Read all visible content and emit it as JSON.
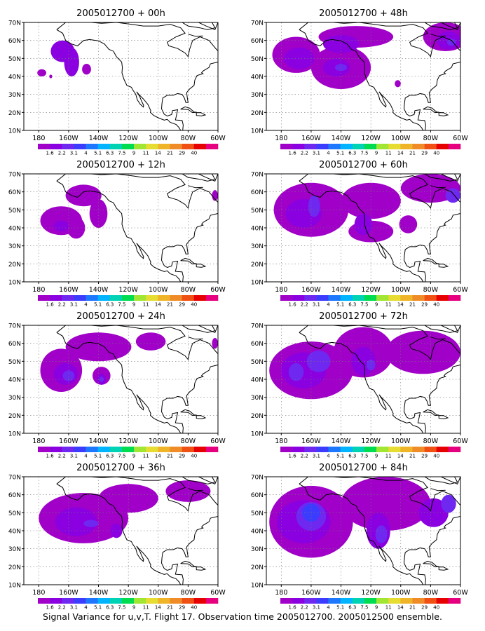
{
  "caption": "Signal Variance for u,v,T. Flight 17. Observation time 2005012700. 2005012500 ensemble.",
  "y_ticks": [
    "70N",
    "60N",
    "50N",
    "40N",
    "30N",
    "20N",
    "10N"
  ],
  "x_ticks": [
    "180",
    "160W",
    "140W",
    "120W",
    "100W",
    "80W",
    "60W"
  ],
  "colorbar": {
    "colors": [
      "#a000c8",
      "#8a00e0",
      "#6e28f0",
      "#3c3cff",
      "#1e78ff",
      "#00b4ff",
      "#00d2b4",
      "#00dc50",
      "#a0e632",
      "#e6dc32",
      "#f0b428",
      "#f08c28",
      "#f05014",
      "#e60000",
      "#e60080"
    ],
    "labels": [
      "1.6",
      "2.2",
      "3.1",
      "4",
      "5.1",
      "6.3",
      "7.5",
      "9",
      "11",
      "14",
      "21",
      "29",
      "40"
    ]
  },
  "panels": [
    {
      "title": "2005012700 + 00h",
      "blobs": [
        {
          "lon": -164,
          "lat": 54,
          "r": 8,
          "rl": 6,
          "level": 1
        },
        {
          "lon": -158,
          "lat": 48,
          "r": 5,
          "rl": 8,
          "level": 1
        },
        {
          "lon": -178,
          "lat": 42,
          "r": 3,
          "rl": 2,
          "level": 0
        },
        {
          "lon": -148,
          "lat": 44,
          "r": 3,
          "rl": 3,
          "level": 0
        },
        {
          "lon": -172,
          "lat": 40,
          "r": 1,
          "rl": 1,
          "level": 0
        }
      ]
    },
    {
      "title": "2005012700 + 48h",
      "blobs": [
        {
          "lon": -170,
          "lat": 52,
          "r": 16,
          "rl": 10,
          "level": 0
        },
        {
          "lon": -140,
          "lat": 45,
          "r": 20,
          "rl": 12,
          "level": 0
        },
        {
          "lon": -130,
          "lat": 62,
          "r": 25,
          "rl": 6,
          "level": 0
        },
        {
          "lon": -70,
          "lat": 62,
          "r": 15,
          "rl": 8,
          "level": 0
        },
        {
          "lon": -168,
          "lat": 50,
          "r": 10,
          "rl": 6,
          "level": 1
        },
        {
          "lon": -143,
          "lat": 45,
          "r": 9,
          "rl": 5,
          "level": 1
        },
        {
          "lon": -140,
          "lat": 45,
          "r": 4,
          "rl": 2,
          "level": 2
        },
        {
          "lon": -140,
          "lat": 58,
          "r": 12,
          "rl": 5,
          "level": 1
        },
        {
          "lon": -68,
          "lat": 60,
          "r": 8,
          "rl": 5,
          "level": 1
        },
        {
          "lon": -66,
          "lat": 59,
          "r": 3,
          "rl": 2,
          "level": 2
        },
        {
          "lon": -102,
          "lat": 36,
          "r": 2,
          "rl": 2,
          "level": 0
        }
      ]
    },
    {
      "title": "2005012700 + 12h",
      "blobs": [
        {
          "lon": -165,
          "lat": 44,
          "r": 14,
          "rl": 8,
          "level": 0
        },
        {
          "lon": -150,
          "lat": 58,
          "r": 12,
          "rl": 6,
          "level": 0
        },
        {
          "lon": -155,
          "lat": 40,
          "r": 6,
          "rl": 6,
          "level": 0
        },
        {
          "lon": -140,
          "lat": 48,
          "r": 6,
          "rl": 8,
          "level": 0
        },
        {
          "lon": -165,
          "lat": 41,
          "r": 5,
          "rl": 3,
          "level": 1
        },
        {
          "lon": -62,
          "lat": 58,
          "r": 2,
          "rl": 3,
          "level": 0
        }
      ]
    },
    {
      "title": "2005012700 + 60h",
      "blobs": [
        {
          "lon": -160,
          "lat": 50,
          "r": 25,
          "rl": 15,
          "level": 0
        },
        {
          "lon": -120,
          "lat": 55,
          "r": 20,
          "rl": 10,
          "level": 0
        },
        {
          "lon": -80,
          "lat": 62,
          "r": 20,
          "rl": 8,
          "level": 0
        },
        {
          "lon": -120,
          "lat": 38,
          "r": 15,
          "rl": 6,
          "level": 0
        },
        {
          "lon": -95,
          "lat": 42,
          "r": 6,
          "rl": 5,
          "level": 0
        },
        {
          "lon": -165,
          "lat": 48,
          "r": 12,
          "rl": 8,
          "level": 1
        },
        {
          "lon": -158,
          "lat": 52,
          "r": 4,
          "rl": 6,
          "level": 2
        },
        {
          "lon": -125,
          "lat": 42,
          "r": 6,
          "rl": 6,
          "level": 1
        },
        {
          "lon": -65,
          "lat": 58,
          "r": 5,
          "rl": 4,
          "level": 2
        }
      ]
    },
    {
      "title": "2005012700 + 24h",
      "blobs": [
        {
          "lon": -165,
          "lat": 45,
          "r": 14,
          "rl": 12,
          "level": 0
        },
        {
          "lon": -140,
          "lat": 58,
          "r": 22,
          "rl": 8,
          "level": 0
        },
        {
          "lon": -138,
          "lat": 42,
          "r": 6,
          "rl": 5,
          "level": 0
        },
        {
          "lon": -162,
          "lat": 43,
          "r": 8,
          "rl": 6,
          "level": 1
        },
        {
          "lon": -160,
          "lat": 42,
          "r": 4,
          "rl": 3,
          "level": 2
        },
        {
          "lon": -138,
          "lat": 40,
          "r": 3,
          "rl": 3,
          "level": 1
        },
        {
          "lon": -138,
          "lat": 40,
          "r": 1.5,
          "rl": 1.5,
          "level": 2
        },
        {
          "lon": -105,
          "lat": 61,
          "r": 10,
          "rl": 5,
          "level": 0
        },
        {
          "lon": -62,
          "lat": 60,
          "r": 2,
          "rl": 3,
          "level": 0
        }
      ]
    },
    {
      "title": "2005012700 + 72h",
      "blobs": [
        {
          "lon": -160,
          "lat": 45,
          "r": 28,
          "rl": 16,
          "level": 0
        },
        {
          "lon": -125,
          "lat": 55,
          "r": 20,
          "rl": 14,
          "level": 0
        },
        {
          "lon": -85,
          "lat": 55,
          "r": 25,
          "rl": 12,
          "level": 0
        },
        {
          "lon": -165,
          "lat": 45,
          "r": 15,
          "rl": 10,
          "level": 1
        },
        {
          "lon": -155,
          "lat": 50,
          "r": 8,
          "rl": 6,
          "level": 2
        },
        {
          "lon": -170,
          "lat": 44,
          "r": 5,
          "rl": 5,
          "level": 2
        },
        {
          "lon": -125,
          "lat": 50,
          "r": 8,
          "rl": 8,
          "level": 1
        },
        {
          "lon": -120,
          "lat": 48,
          "r": 3,
          "rl": 3,
          "level": 2
        }
      ]
    },
    {
      "title": "2005012700 + 36h",
      "blobs": [
        {
          "lon": -150,
          "lat": 47,
          "r": 30,
          "rl": 14,
          "level": 0
        },
        {
          "lon": -120,
          "lat": 58,
          "r": 20,
          "rl": 8,
          "level": 0
        },
        {
          "lon": -80,
          "lat": 62,
          "r": 15,
          "rl": 6,
          "level": 0
        },
        {
          "lon": -155,
          "lat": 45,
          "r": 14,
          "rl": 8,
          "level": 1
        },
        {
          "lon": -145,
          "lat": 44,
          "r": 5,
          "rl": 2,
          "level": 2
        },
        {
          "lon": -128,
          "lat": 40,
          "r": 4,
          "rl": 4,
          "level": 1
        }
      ]
    },
    {
      "title": "2005012700 + 84h",
      "blobs": [
        {
          "lon": -160,
          "lat": 45,
          "r": 28,
          "rl": 20,
          "level": 0
        },
        {
          "lon": -110,
          "lat": 55,
          "r": 30,
          "rl": 15,
          "level": 0
        },
        {
          "lon": -165,
          "lat": 45,
          "r": 18,
          "rl": 12,
          "level": 1
        },
        {
          "lon": -160,
          "lat": 48,
          "r": 10,
          "rl": 8,
          "level": 2
        },
        {
          "lon": -160,
          "lat": 50,
          "r": 6,
          "rl": 5,
          "level": 3
        },
        {
          "lon": -115,
          "lat": 40,
          "r": 8,
          "rl": 10,
          "level": 1
        },
        {
          "lon": -113,
          "lat": 38,
          "r": 4,
          "rl": 5,
          "level": 2
        },
        {
          "lon": -78,
          "lat": 50,
          "r": 10,
          "rl": 8,
          "level": 1
        },
        {
          "lon": -68,
          "lat": 55,
          "r": 5,
          "rl": 5,
          "level": 2
        }
      ]
    }
  ]
}
